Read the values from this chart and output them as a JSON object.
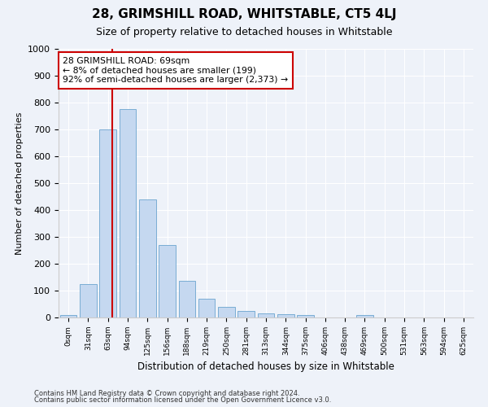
{
  "title": "28, GRIMSHILL ROAD, WHITSTABLE, CT5 4LJ",
  "subtitle": "Size of property relative to detached houses in Whitstable",
  "xlabel": "Distribution of detached houses by size in Whitstable",
  "ylabel": "Number of detached properties",
  "bar_color": "#c5d8f0",
  "bar_edge_color": "#7aadd4",
  "categories": [
    "0sqm",
    "31sqm",
    "63sqm",
    "94sqm",
    "125sqm",
    "156sqm",
    "188sqm",
    "219sqm",
    "250sqm",
    "281sqm",
    "313sqm",
    "344sqm",
    "375sqm",
    "406sqm",
    "438sqm",
    "469sqm",
    "500sqm",
    "531sqm",
    "563sqm",
    "594sqm",
    "625sqm"
  ],
  "values": [
    8,
    125,
    700,
    775,
    440,
    270,
    135,
    70,
    40,
    25,
    15,
    12,
    8,
    0,
    0,
    10,
    0,
    0,
    0,
    0,
    0
  ],
  "ylim": [
    0,
    1000
  ],
  "yticks": [
    0,
    100,
    200,
    300,
    400,
    500,
    600,
    700,
    800,
    900,
    1000
  ],
  "vline_x": 2.23,
  "vline_color": "#cc0000",
  "annotation_text": "28 GRIMSHILL ROAD: 69sqm\n← 8% of detached houses are smaller (199)\n92% of semi-detached houses are larger (2,373) →",
  "annotation_box_facecolor": "#ffffff",
  "annotation_box_edgecolor": "#cc0000",
  "footer1": "Contains HM Land Registry data © Crown copyright and database right 2024.",
  "footer2": "Contains public sector information licensed under the Open Government Licence v3.0.",
  "background_color": "#eef2f9",
  "grid_color": "#ffffff",
  "title_fontsize": 11,
  "subtitle_fontsize": 9
}
